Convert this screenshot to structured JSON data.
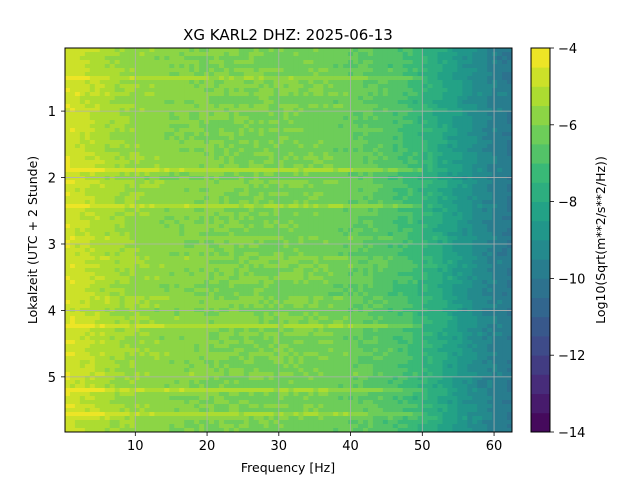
{
  "chart_data": {
    "type": "heatmap",
    "title": "XG KARL2  DHZ: 2025-06-13",
    "xlabel": "Frequency [Hz]",
    "ylabel": "Lokalzeit (UTC + 2 Stunde)",
    "xlim": [
      0.2,
      62.5
    ],
    "ylim": [
      5.83,
      0.05
    ],
    "x_ticks": [
      10,
      20,
      30,
      40,
      50,
      60
    ],
    "y_ticks": [
      1,
      2,
      3,
      4,
      5
    ],
    "grid": true,
    "colorbar": {
      "label": "Log10(Sqrt(m**2/s**2/Hz))",
      "range": [
        -14,
        -4
      ],
      "ticks": [
        -4,
        -6,
        -8,
        -10,
        -12,
        -14
      ],
      "levels": 20,
      "colormap": "viridis"
    },
    "profile": {
      "description": "median value along frequency",
      "frequency_hz": [
        0.2,
        3,
        8,
        15,
        25,
        35,
        40,
        44,
        48,
        52,
        56,
        60,
        62.5
      ],
      "value": [
        -4.6,
        -4.9,
        -5.5,
        -5.8,
        -6.0,
        -6.1,
        -6.3,
        -6.6,
        -7.0,
        -7.8,
        -8.8,
        -9.6,
        -10.0
      ]
    },
    "bright_bands_hours": [
      0.5,
      1.87,
      2.42,
      4.23,
      5.2,
      5.58
    ]
  }
}
